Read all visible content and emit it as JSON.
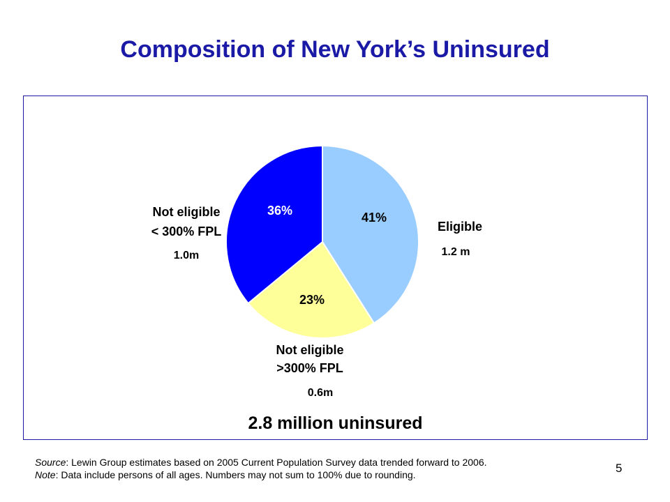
{
  "title": "Composition of New York’s Uninsured",
  "chart_data": {
    "type": "pie",
    "slices": [
      {
        "pct_label": "41%",
        "value": 41,
        "category": "Eligible",
        "category_line2": "",
        "count": "1.2 m",
        "color": "#99ccff"
      },
      {
        "pct_label": "23%",
        "value": 23,
        "category": "Not eligible",
        "category_line2": ">300% FPL",
        "count": "0.6m",
        "color": "#ffff99"
      },
      {
        "pct_label": "36%",
        "value": 36,
        "category": "Not eligible",
        "category_line2": "< 300% FPL",
        "count": "1.0m",
        "color": "#0000ff"
      }
    ],
    "total_label": "2.8 million uninsured"
  },
  "footnote": {
    "source_label": "Source",
    "source_text": ": Lewin Group estimates based on 2005 Current Population Survey data trended forward to 2006.",
    "note_label": "Note",
    "note_text": ":  Data include persons of all ages. Numbers may not sum to 100% due to rounding."
  },
  "page_number": "5"
}
